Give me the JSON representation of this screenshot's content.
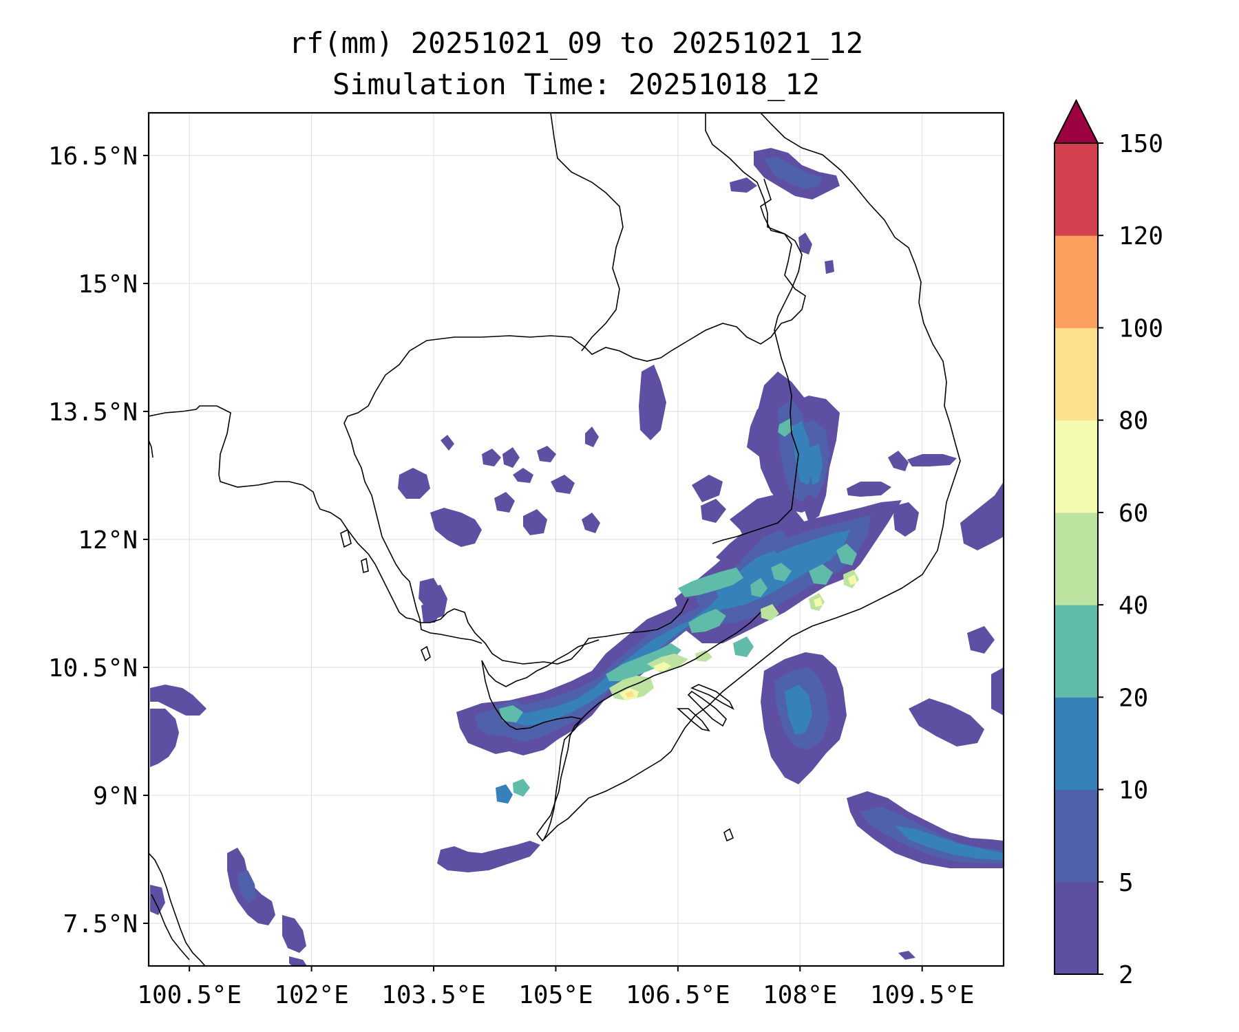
{
  "title": {
    "line1": "rf(mm) 20251021_09 to 20251021_12",
    "line2": "Simulation Time: 20251018_12"
  },
  "map": {
    "extent": {
      "lon": [
        100.0,
        110.5
      ],
      "lat": [
        7.0,
        17.0
      ]
    },
    "lon_ticks": [
      100.5,
      102.0,
      103.5,
      105.0,
      106.5,
      108.0,
      109.5
    ],
    "lon_tick_labels": [
      "100.5°E",
      "102°E",
      "103.5°E",
      "105°E",
      "106.5°E",
      "108°E",
      "109.5°E"
    ],
    "lat_ticks": [
      7.5,
      9.0,
      10.5,
      12.0,
      13.5,
      15.0,
      16.5
    ],
    "lat_tick_labels": [
      "7.5°N",
      "9°N",
      "10.5°N",
      "12°N",
      "13.5°N",
      "15°N",
      "16.5°N"
    ],
    "gridlines": true
  },
  "colorbar": {
    "levels": [
      2,
      5,
      10,
      20,
      40,
      60,
      80,
      100,
      120,
      150
    ],
    "level_labels": [
      "2",
      "5",
      "10",
      "20",
      "40",
      "60",
      "80",
      "100",
      "120",
      "150"
    ],
    "colors": [
      "#5e4fa2",
      "#4f61aa",
      "#3681ba",
      "#60bba8",
      "#bde3a0",
      "#f4faad",
      "#fddf8d",
      "#fb9e5e",
      "#d3404e"
    ],
    "extend_color": "#9e0142",
    "extend": "max"
  },
  "colors": {
    "coast": "#000000",
    "grid": "#dddddd",
    "frame": "#000000"
  }
}
